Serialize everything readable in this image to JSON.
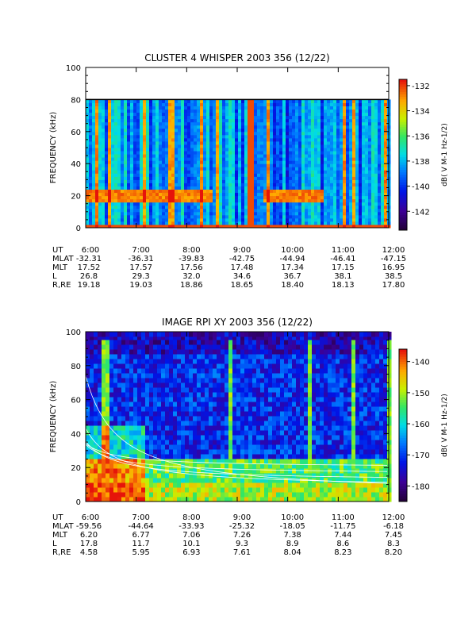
{
  "chart_data": [
    {
      "type": "heatmap",
      "title": "CLUSTER 4 WHISPER 2003 356 (12/22)",
      "ylabel": "FREQUENCY (kHz)",
      "ylim": [
        0,
        100
      ],
      "yticks": [
        "0",
        "20",
        "40",
        "60",
        "80",
        "100"
      ],
      "data_top_khz": 80,
      "colorbar": {
        "label": "dB( V M⁻¹ Hz⁻¹ᐟ²)",
        "label_plain": "dB( V M-1 Hz-1/2)",
        "range": [
          -143.5,
          -131.5
        ],
        "ticks": [
          "-132",
          "-134",
          "-136",
          "-138",
          "-140",
          "-142"
        ],
        "tick_values": [
          -132,
          -134,
          -136,
          -138,
          -140,
          -142
        ]
      },
      "ephemeris": {
        "row_labels": [
          "UT",
          "MLAT",
          "MLT",
          "L",
          "R,RE"
        ],
        "times": [
          "6:00",
          "7:00",
          "8:00",
          "9:00",
          "10:00",
          "11:00",
          "12:00"
        ],
        "MLAT": [
          "-32.31",
          "-36.31",
          "-39.83",
          "-42.75",
          "-44.94",
          "-46.41",
          "-47.15"
        ],
        "MLT": [
          "17.52",
          "17.57",
          "17.56",
          "17.48",
          "17.34",
          "17.15",
          "16.95"
        ],
        "L": [
          "26.8",
          "29.3",
          "32.0",
          "34.6",
          "36.7",
          "38.1",
          "38.5"
        ],
        "R,RE": [
          "19.18",
          "19.03",
          "18.86",
          "18.65",
          "18.40",
          "18.13",
          "17.80"
        ]
      }
    },
    {
      "type": "heatmap",
      "title": "IMAGE RPI XY 2003 356 (12/22)",
      "ylabel": "FREQUENCY (kHz)",
      "ylim": [
        0,
        100
      ],
      "yticks": [
        "0",
        "20",
        "40",
        "60",
        "80",
        "100"
      ],
      "colorbar": {
        "label_plain": "dB( V M-1 Hz-1/2)",
        "range": [
          -185,
          -136
        ],
        "ticks": [
          "-140",
          "-150",
          "-160",
          "-170",
          "-180"
        ],
        "tick_values": [
          -140,
          -150,
          -160,
          -170,
          -180
        ]
      },
      "ephemeris": {
        "row_labels": [
          "UT",
          "MLAT",
          "MLT",
          "L",
          "R,RE"
        ],
        "times": [
          "6:00",
          "7:00",
          "8:00",
          "9:00",
          "10:00",
          "11:00",
          "12:00"
        ],
        "MLAT": [
          "-59.56",
          "-44.64",
          "-33.93",
          "-25.32",
          "-18.05",
          "-11.75",
          "-6.18"
        ],
        "MLT": [
          "6.20",
          "6.77",
          "7.06",
          "7.26",
          "7.38",
          "7.44",
          "7.45"
        ],
        "L": [
          "17.8",
          "11.7",
          "10.1",
          "9.3",
          "8.9",
          "8.6",
          "8.3"
        ],
        "R,RE": [
          "4.58",
          "5.95",
          "6.93",
          "7.61",
          "8.04",
          "8.23",
          "8.20"
        ]
      }
    }
  ]
}
